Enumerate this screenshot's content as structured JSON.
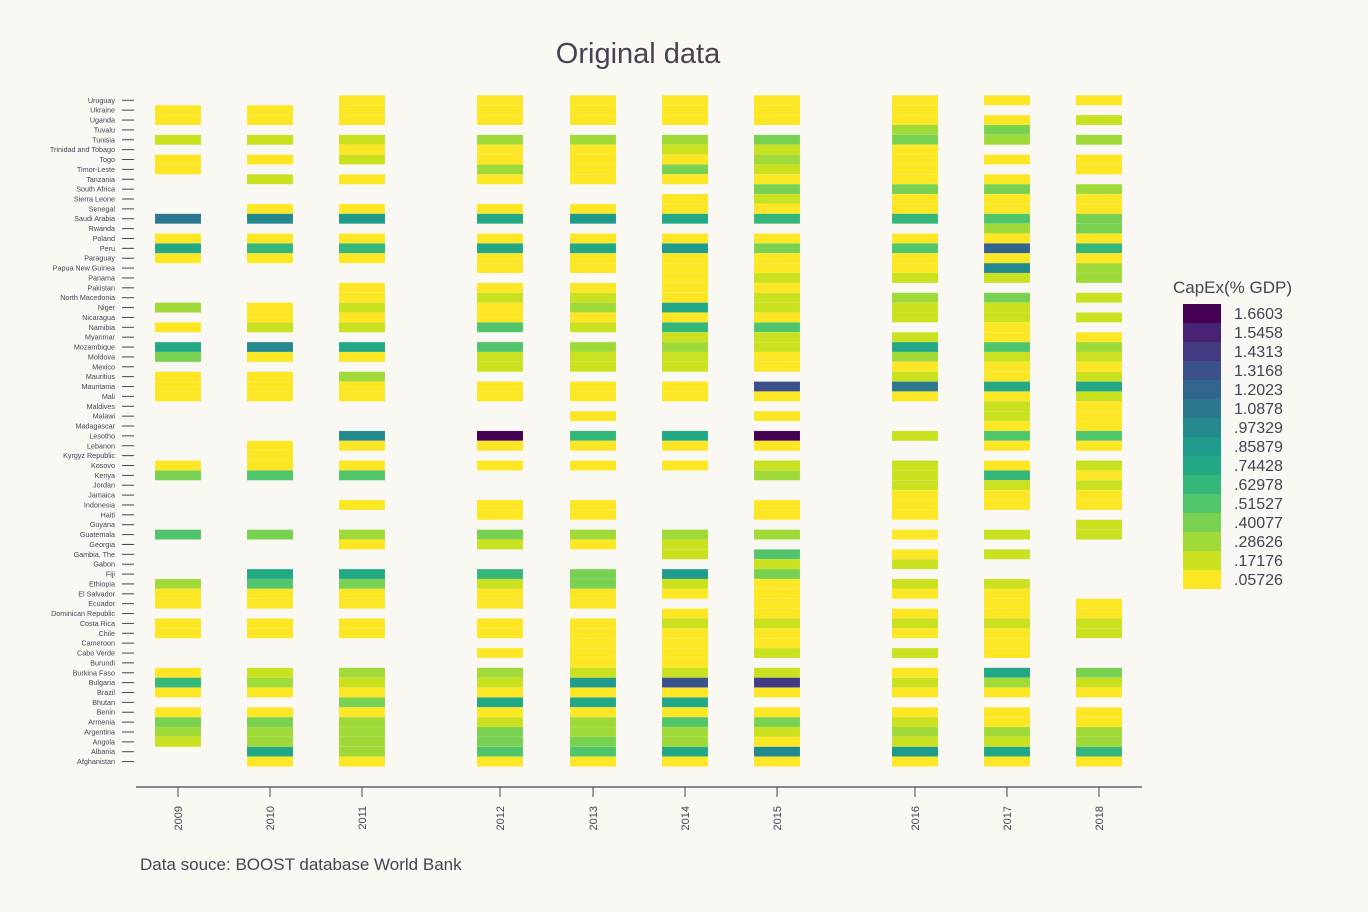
{
  "chart_data": {
    "type": "heatmap",
    "title": "Original data",
    "source": "Data souce: BOOST database World Bank",
    "legend": {
      "title": "CapEx(% GDP)",
      "placement": "right",
      "ticks": [
        "1.6603",
        "1.5458",
        "1.4313",
        "1.3168",
        "1.2023",
        "1.0878",
        ".97329",
        ".85879",
        ".74428",
        ".62978",
        ".51527",
        ".40077",
        ".28626",
        ".17176",
        ".05726"
      ],
      "colors": [
        "#440154",
        "#482274",
        "#443a83",
        "#3b518b",
        "#32658e",
        "#2b788e",
        "#24898d",
        "#1e9b8a",
        "#22a884",
        "#35b779",
        "#51c56a",
        "#79d151",
        "#a0da39",
        "#cae11f",
        "#fde725"
      ]
    },
    "years": [
      "2009",
      "2010",
      "2011",
      "2012",
      "2013",
      "2014",
      "2015",
      "2016",
      "2017",
      "2018"
    ],
    "countries": [
      "Uruguay",
      "Ukraine",
      "Uganda",
      "Tuvalu",
      "Tunisia",
      "Trinidad and Tobago",
      "Togo",
      "Timor-Leste",
      "Tanzania",
      "South Africa",
      "Sierra Leone",
      "Senegal",
      "Saudi Arabia",
      "Rwanda",
      "Poland",
      "Peru",
      "Paraguay",
      "Papua New Guinea",
      "Panama",
      "Pakistan",
      "North Macedonia",
      "Niger",
      "Nicaragua",
      "Namibia",
      "Myanmar",
      "Mozambique",
      "Moldova",
      "Mexico",
      "Mauritius",
      "Mauritania",
      "Mali",
      "Maldives",
      "Malawi",
      "Madagascar",
      "Lesotho",
      "Lebanon",
      "Kyrgyz Republic",
      "Kosovo",
      "Kenya",
      "Jordan",
      "Jamaica",
      "Indonesia",
      "Haiti",
      "Guyana",
      "Guatemala",
      "Georgia",
      "Gambia, The",
      "Gabon",
      "Fiji",
      "Ethiopia",
      "El Salvador",
      "Ecuador",
      "Dominican Republic",
      "Costa Rica",
      "Chile",
      "Cameroon",
      "Cabo Verde",
      "Burundi",
      "Burkina Faso",
      "Bulgaria",
      "Brazil",
      "Bhutan",
      "Benin",
      "Armenia",
      "Argentina",
      "Angola",
      "Albania",
      "Afghanistan"
    ],
    "values": {
      "2009": {
        "Ukraine": 0.05,
        "Uganda": 0.05,
        "Tunisia": 0.22,
        "Togo": 0.05,
        "Timor-Leste": 0.05,
        "Saudi Arabia": 1.1,
        "Poland": 0.05,
        "Peru": 0.7,
        "Paraguay": 0.05,
        "Niger": 0.3,
        "Namibia": 0.05,
        "Mozambique": 0.75,
        "Moldova": 0.35,
        "Mauritius": 0.05,
        "Mauritania": 0.05,
        "Mali": 0.05,
        "Kosovo": 0.05,
        "Kenya": 0.45,
        "Guatemala": 0.55,
        "Ethiopia": 0.3,
        "El Salvador": 0.05,
        "Ecuador": 0.05,
        "Costa Rica": 0.05,
        "Chile": 0.05,
        "Burkina Faso": 0.05,
        "Bulgaria": 0.6,
        "Brazil": 0.05,
        "Benin": 0.05,
        "Armenia": 0.4,
        "Argentina": 0.3,
        "Angola": 0.2
      },
      "2010": {
        "Ukraine": 0.05,
        "Uganda": 0.05,
        "Tunisia": 0.2,
        "Togo": 0.05,
        "Tanzania": 0.2,
        "Senegal": 0.05,
        "Saudi Arabia": 1.0,
        "Poland": 0.05,
        "Peru": 0.65,
        "Paraguay": 0.05,
        "Niger": 0.05,
        "Nicaragua": 0.05,
        "Namibia": 0.17,
        "Mozambique": 0.95,
        "Moldova": 0.05,
        "Mauritius": 0.05,
        "Mauritania": 0.05,
        "Mali": 0.05,
        "Lebanon": 0.05,
        "Kyrgyz Republic": 0.05,
        "Kosovo": 0.05,
        "Kenya": 0.5,
        "Guatemala": 0.4,
        "Fiji": 0.7,
        "Ethiopia": 0.5,
        "El Salvador": 0.05,
        "Ecuador": 0.05,
        "Costa Rica": 0.05,
        "Chile": 0.05,
        "Burkina Faso": 0.2,
        "Bulgaria": 0.3,
        "Brazil": 0.05,
        "Benin": 0.05,
        "Armenia": 0.4,
        "Argentina": 0.3,
        "Angola": 0.3,
        "Albania": 0.75,
        "Afghanistan": 0.05
      },
      "2011": {
        "Uruguay": 0.05,
        "Ukraine": 0.05,
        "Uganda": 0.05,
        "Tunisia": 0.2,
        "Trinidad and Tobago": 0.05,
        "Togo": 0.17,
        "Tanzania": 0.05,
        "Senegal": 0.05,
        "Saudi Arabia": 0.85,
        "Poland": 0.05,
        "Peru": 0.6,
        "Paraguay": 0.05,
        "Pakistan": 0.05,
        "North Macedonia": 0.05,
        "Niger": 0.2,
        "Nicaragua": 0.05,
        "Namibia": 0.17,
        "Mozambique": 0.7,
        "Moldova": 0.05,
        "Mauritius": 0.25,
        "Mauritania": 0.05,
        "Mali": 0.05,
        "Lesotho": 0.95,
        "Lebanon": 0.05,
        "Kosovo": 0.05,
        "Kenya": 0.5,
        "Indonesia": 0.05,
        "Guatemala": 0.25,
        "Georgia": 0.05,
        "Fiji": 0.75,
        "Ethiopia": 0.35,
        "El Salvador": 0.05,
        "Ecuador": 0.05,
        "Costa Rica": 0.05,
        "Chile": 0.05,
        "Burkina Faso": 0.25,
        "Bulgaria": 0.2,
        "Brazil": 0.05,
        "Bhutan": 0.45,
        "Benin": 0.05,
        "Armenia": 0.3,
        "Argentina": 0.3,
        "Angola": 0.3,
        "Albania": 0.3,
        "Afghanistan": 0.05
      },
      "2012": {
        "Uruguay": 0.05,
        "Ukraine": 0.05,
        "Uganda": 0.05,
        "Tunisia": 0.25,
        "Trinidad and Tobago": 0.05,
        "Togo": 0.05,
        "Timor-Leste": 0.3,
        "Tanzania": 0.05,
        "Senegal": 0.05,
        "Saudi Arabia": 0.8,
        "Poland": 0.05,
        "Peru": 0.8,
        "Paraguay": 0.05,
        "Papua New Guinea": 0.05,
        "Pakistan": 0.05,
        "North Macedonia": 0.17,
        "Niger": 0.05,
        "Nicaragua": 0.05,
        "Namibia": 0.5,
        "Mozambique": 0.5,
        "Moldova": 0.17,
        "Mexico": 0.17,
        "Mauritania": 0.05,
        "Mali": 0.05,
        "Lesotho": 1.66,
        "Lebanon": 0.05,
        "Kosovo": 0.05,
        "Indonesia": 0.05,
        "Haiti": 0.05,
        "Guatemala": 0.4,
        "Georgia": 0.2,
        "Fiji": 0.6,
        "Ethiopia": 0.2,
        "El Salvador": 0.05,
        "Ecuador": 0.05,
        "Costa Rica": 0.05,
        "Chile": 0.05,
        "Cabo Verde": 0.05,
        "Burkina Faso": 0.3,
        "Bulgaria": 0.2,
        "Brazil": 0.05,
        "Bhutan": 0.75,
        "Benin": 0.05,
        "Armenia": 0.2,
        "Argentina": 0.35,
        "Angola": 0.4,
        "Albania": 0.55,
        "Afghanistan": 0.05
      },
      "2013": {
        "Uruguay": 0.05,
        "Ukraine": 0.05,
        "Uganda": 0.05,
        "Tunisia": 0.3,
        "Trinidad and Tobago": 0.05,
        "Togo": 0.05,
        "Timor-Leste": 0.05,
        "Tanzania": 0.05,
        "Senegal": 0.05,
        "Saudi Arabia": 0.85,
        "Poland": 0.05,
        "Peru": 0.75,
        "Paraguay": 0.05,
        "Papua New Guinea": 0.05,
        "Pakistan": 0.05,
        "North Macedonia": 0.17,
        "Niger": 0.3,
        "Nicaragua": 0.05,
        "Namibia": 0.17,
        "Mozambique": 0.3,
        "Moldova": 0.2,
        "Mexico": 0.2,
        "Mauritania": 0.05,
        "Mali": 0.05,
        "Malawi": 0.05,
        "Lesotho": 0.6,
        "Lebanon": 0.05,
        "Kosovo": 0.05,
        "Indonesia": 0.05,
        "Haiti": 0.05,
        "Guatemala": 0.3,
        "Georgia": 0.05,
        "Fiji": 0.45,
        "Ethiopia": 0.35,
        "El Salvador": 0.05,
        "Ecuador": 0.05,
        "Costa Rica": 0.05,
        "Chile": 0.05,
        "Cameroon": 0.05,
        "Cabo Verde": 0.05,
        "Burundi": 0.05,
        "Burkina Faso": 0.17,
        "Bulgaria": 0.85,
        "Brazil": 0.05,
        "Bhutan": 0.75,
        "Benin": 0.05,
        "Armenia": 0.3,
        "Argentina": 0.3,
        "Angola": 0.4,
        "Albania": 0.55,
        "Afghanistan": 0.05
      },
      "2014": {
        "Uruguay": 0.05,
        "Ukraine": 0.05,
        "Uganda": 0.05,
        "Tunisia": 0.3,
        "Trinidad and Tobago": 0.17,
        "Togo": 0.05,
        "Timor-Leste": 0.35,
        "Tanzania": 0.05,
        "Sierra Leone": 0.05,
        "Senegal": 0.05,
        "Saudi Arabia": 0.7,
        "Poland": 0.05,
        "Peru": 0.85,
        "Paraguay": 0.05,
        "Papua New Guinea": 0.05,
        "Panama": 0.05,
        "Pakistan": 0.05,
        "North Macedonia": 0.05,
        "Niger": 0.7,
        "Nicaragua": 0.05,
        "Namibia": 0.6,
        "Myanmar": 0.17,
        "Mozambique": 0.3,
        "Moldova": 0.2,
        "Mexico": 0.2,
        "Mauritania": 0.05,
        "Mali": 0.05,
        "Lesotho": 0.75,
        "Lebanon": 0.05,
        "Kosovo": 0.05,
        "Guatemala": 0.3,
        "Georgia": 0.2,
        "Gambia, The": 0.2,
        "Fiji": 0.85,
        "Ethiopia": 0.17,
        "El Salvador": 0.05,
        "Dominican Republic": 0.05,
        "Costa Rica": 0.17,
        "Chile": 0.05,
        "Cameroon": 0.05,
        "Cabo Verde": 0.05,
        "Burundi": 0.05,
        "Burkina Faso": 0.17,
        "Bulgaria": 1.3,
        "Brazil": 0.05,
        "Bhutan": 0.75,
        "Benin": 0.05,
        "Armenia": 0.5,
        "Argentina": 0.3,
        "Angola": 0.3,
        "Albania": 0.7,
        "Afghanistan": 0.05
      },
      "2015": {
        "Uruguay": 0.05,
        "Ukraine": 0.05,
        "Uganda": 0.05,
        "Tunisia": 0.45,
        "Trinidad and Tobago": 0.17,
        "Togo": 0.3,
        "Timor-Leste": 0.17,
        "Tanzania": 0.05,
        "South Africa": 0.45,
        "Sierra Leone": 0.17,
        "Senegal": 0.05,
        "Saudi Arabia": 0.6,
        "Poland": 0.05,
        "Peru": 0.45,
        "Paraguay": 0.05,
        "Papua New Guinea": 0.05,
        "Panama": 0.2,
        "Pakistan": 0.05,
        "North Macedonia": 0.2,
        "Niger": 0.17,
        "Nicaragua": 0.05,
        "Namibia": 0.5,
        "Myanmar": 0.17,
        "Mozambique": 0.17,
        "Moldova": 0.05,
        "Mexico": 0.05,
        "Mauritania": 1.3,
        "Mali": 0.05,
        "Malawi": 0.05,
        "Lesotho": 1.66,
        "Lebanon": 0.05,
        "Kosovo": 0.2,
        "Kenya": 0.3,
        "Indonesia": 0.05,
        "Haiti": 0.05,
        "Guatemala": 0.3,
        "Gambia, The": 0.5,
        "Gabon": 0.17,
        "Fiji": 0.45,
        "Ethiopia": 0.05,
        "El Salvador": 0.05,
        "Ecuador": 0.05,
        "Dominican Republic": 0.05,
        "Costa Rica": 0.17,
        "Chile": 0.05,
        "Cameroon": 0.05,
        "Cabo Verde": 0.17,
        "Burkina Faso": 0.17,
        "Bulgaria": 1.4,
        "Brazil": 0.05,
        "Benin": 0.05,
        "Armenia": 0.45,
        "Argentina": 0.17,
        "Angola": 0.05,
        "Albania": 0.95,
        "Afghanistan": 0.05
      },
      "2016": {
        "Uruguay": 0.05,
        "Ukraine": 0.05,
        "Uganda": 0.05,
        "Tuvalu": 0.25,
        "Tunisia": 0.35,
        "Trinidad and Tobago": 0.05,
        "Togo": 0.05,
        "Timor-Leste": 0.05,
        "Tanzania": 0.05,
        "South Africa": 0.45,
        "Sierra Leone": 0.05,
        "Senegal": 0.05,
        "Saudi Arabia": 0.65,
        "Poland": 0.05,
        "Peru": 0.5,
        "Paraguay": 0.05,
        "Papua New Guinea": 0.05,
        "Panama": 0.17,
        "North Macedonia": 0.3,
        "Niger": 0.17,
        "Nicaragua": 0.17,
        "Myanmar": 0.2,
        "Mozambique": 0.7,
        "Moldova": 0.3,
        "Mexico": 0.05,
        "Mauritius": 0.17,
        "Mauritania": 1.1,
        "Mali": 0.05,
        "Lesotho": 0.2,
        "Kosovo": 0.2,
        "Kenya": 0.2,
        "Jordan": 0.17,
        "Jamaica": 0.05,
        "Indonesia": 0.05,
        "Haiti": 0.05,
        "Guatemala": 0.05,
        "Gambia, The": 0.05,
        "Gabon": 0.17,
        "Ethiopia": 0.2,
        "El Salvador": 0.05,
        "Dominican Republic": 0.05,
        "Costa Rica": 0.2,
        "Chile": 0.05,
        "Cabo Verde": 0.2,
        "Burkina Faso": 0.05,
        "Bulgaria": 0.2,
        "Brazil": 0.05,
        "Benin": 0.05,
        "Armenia": 0.2,
        "Argentina": 0.3,
        "Angola": 0.2,
        "Albania": 0.9,
        "Afghanistan": 0.05
      },
      "2017": {
        "Uruguay": 0.05,
        "Uganda": 0.05,
        "Tuvalu": 0.35,
        "Tunisia": 0.3,
        "Togo": 0.05,
        "Tanzania": 0.05,
        "South Africa": 0.4,
        "Sierra Leone": 0.05,
        "Senegal": 0.05,
        "Saudi Arabia": 0.5,
        "Rwanda": 0.3,
        "Poland": 0.05,
        "Peru": 1.2,
        "Paraguay": 0.05,
        "Papua New Guinea": 1.0,
        "Panama": 0.2,
        "North Macedonia": 0.45,
        "Niger": 0.2,
        "Nicaragua": 0.17,
        "Namibia": 0.05,
        "Myanmar": 0.05,
        "Mozambique": 0.55,
        "Moldova": 0.17,
        "Mexico": 0.05,
        "Mauritius": 0.05,
        "Mauritania": 0.75,
        "Mali": 0.05,
        "Maldives": 0.2,
        "Malawi": 0.2,
        "Madagascar": 0.05,
        "Lesotho": 0.5,
        "Lebanon": 0.05,
        "Kosovo": 0.05,
        "Kenya": 0.6,
        "Jordan": 0.17,
        "Jamaica": 0.05,
        "Indonesia": 0.05,
        "Guatemala": 0.17,
        "Gambia, The": 0.17,
        "Ethiopia": 0.17,
        "El Salvador": 0.05,
        "Ecuador": 0.05,
        "Dominican Republic": 0.05,
        "Costa Rica": 0.2,
        "Chile": 0.05,
        "Cameroon": 0.05,
        "Cabo Verde": 0.05,
        "Burkina Faso": 0.7,
        "Bulgaria": 0.3,
        "Brazil": 0.05,
        "Benin": 0.05,
        "Armenia": 0.05,
        "Argentina": 0.3,
        "Angola": 0.17,
        "Albania": 0.75,
        "Afghanistan": 0.05
      },
      "2018": {
        "Uruguay": 0.05,
        "Uganda": 0.2,
        "Tunisia": 0.3,
        "Togo": 0.05,
        "Timor-Leste": 0.05,
        "South Africa": 0.3,
        "Sierra Leone": 0.05,
        "Senegal": 0.05,
        "Saudi Arabia": 0.45,
        "Rwanda": 0.35,
        "Poland": 0.05,
        "Peru": 0.65,
        "Paraguay": 0.05,
        "Papua New Guinea": 0.3,
        "Panama": 0.3,
        "North Macedonia": 0.2,
        "Nicaragua": 0.2,
        "Myanmar": 0.05,
        "Mozambique": 0.3,
        "Moldova": 0.17,
        "Mexico": 0.05,
        "Mauritius": 0.17,
        "Mauritania": 0.75,
        "Mali": 0.17,
        "Maldives": 0.05,
        "Malawi": 0.05,
        "Madagascar": 0.05,
        "Lesotho": 0.5,
        "Lebanon": 0.05,
        "Kosovo": 0.17,
        "Kenya": 0.05,
        "Jordan": 0.2,
        "Jamaica": 0.05,
        "Indonesia": 0.05,
        "Guyana": 0.2,
        "Guatemala": 0.2,
        "Ecuador": 0.05,
        "Dominican Republic": 0.05,
        "Costa Rica": 0.2,
        "Chile": 0.2,
        "Burkina Faso": 0.35,
        "Bulgaria": 0.2,
        "Brazil": 0.05,
        "Benin": 0.05,
        "Armenia": 0.05,
        "Argentina": 0.3,
        "Angola": 0.3,
        "Albania": 0.6,
        "Afghanistan": 0.05
      }
    }
  }
}
